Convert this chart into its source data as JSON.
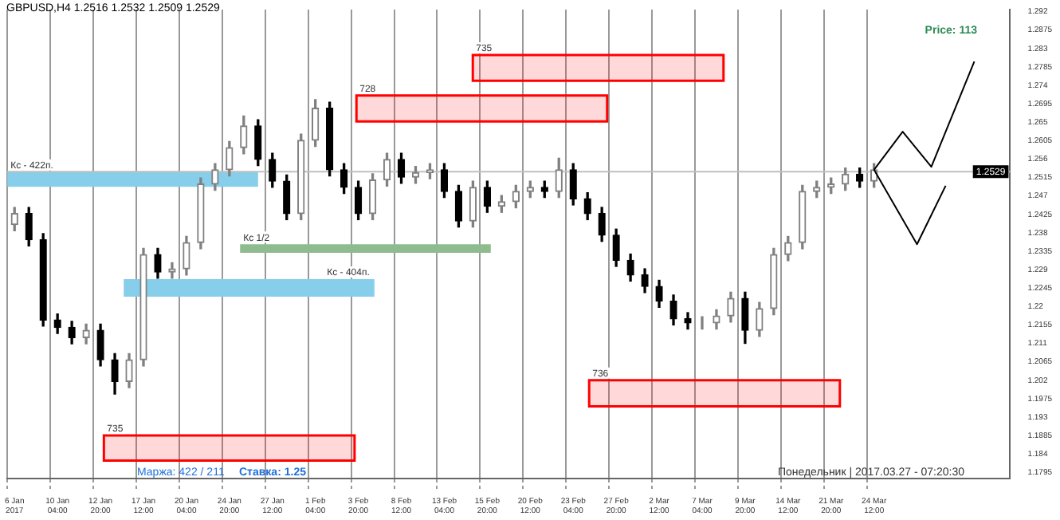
{
  "chart_data": {
    "type": "candlestick",
    "title": "GBPUSD,H4 1.2516 1.2532 1.2509 1.2529",
    "categories": [
      "6 Jan 2017",
      null,
      null,
      "10 Jan 04:00",
      null,
      null,
      "12 Jan 20:00",
      null,
      null,
      "17 Jan 12:00",
      null,
      null,
      "20 Jan 04:00",
      null,
      null,
      "24 Jan 20:00",
      null,
      null,
      "27 Jan 12:00",
      null,
      null,
      "1 Feb 04:00",
      null,
      null,
      "3 Feb 20:00",
      null,
      null,
      "8 Feb 12:00",
      null,
      null,
      "13 Feb 04:00",
      null,
      null,
      "15 Feb 20:00",
      null,
      null,
      "20 Feb 12:00",
      null,
      null,
      "23 Feb 04:00",
      null,
      null,
      "27 Feb 20:00",
      null,
      null,
      "2 Mar 12:00",
      null,
      null,
      "7 Mar 04:00",
      null,
      null,
      "9 Mar 20:00",
      null,
      null,
      "14 Mar 12:00",
      null,
      null,
      "21 Mar 20:00",
      null,
      null,
      "24 Mar 12:00",
      null,
      null,
      null,
      null,
      null,
      null,
      null,
      null,
      null
    ],
    "ohlc": [
      [
        1.24,
        1.2442,
        1.2385,
        1.2427
      ],
      [
        1.2427,
        1.2442,
        1.2348,
        1.2363
      ],
      [
        1.2363,
        1.2378,
        1.2152,
        1.2167
      ],
      [
        1.2167,
        1.2182,
        1.2134,
        1.2149
      ],
      [
        1.2149,
        1.2164,
        1.2109,
        1.2124
      ],
      [
        1.2124,
        1.2157,
        1.2109,
        1.2142
      ],
      [
        1.2142,
        1.2157,
        1.2055,
        1.207
      ],
      [
        1.207,
        1.2085,
        1.1986,
        1.2017
      ],
      [
        1.2017,
        1.2085,
        1.2002,
        1.207
      ],
      [
        1.207,
        1.2342,
        1.2055,
        1.2327
      ],
      [
        1.2327,
        1.2342,
        1.2269,
        1.2284
      ],
      [
        1.2284,
        1.2307,
        1.2269,
        1.2292
      ],
      [
        1.2292,
        1.2371,
        1.2277,
        1.2356
      ],
      [
        1.2356,
        1.2514,
        1.2341,
        1.2499
      ],
      [
        1.2499,
        1.2549,
        1.2484,
        1.2534
      ],
      [
        1.2534,
        1.2603,
        1.2519,
        1.2588
      ],
      [
        1.2588,
        1.2665,
        1.2573,
        1.2641
      ],
      [
        1.2641,
        1.2656,
        1.2544,
        1.2559
      ],
      [
        1.2559,
        1.2574,
        1.2491,
        1.2506
      ],
      [
        1.2506,
        1.2521,
        1.2412,
        1.2427
      ],
      [
        1.2427,
        1.2621,
        1.2412,
        1.2606
      ],
      [
        1.2606,
        1.2705,
        1.2591,
        1.2684
      ],
      [
        1.2684,
        1.2699,
        1.2519,
        1.2534
      ],
      [
        1.2534,
        1.2549,
        1.2476,
        1.2491
      ],
      [
        1.2491,
        1.2506,
        1.2412,
        1.2427
      ],
      [
        1.2427,
        1.2524,
        1.2412,
        1.2509
      ],
      [
        1.2509,
        1.2574,
        1.2494,
        1.2559
      ],
      [
        1.2559,
        1.2574,
        1.2501,
        1.2516
      ],
      [
        1.2516,
        1.2542,
        1.2501,
        1.2527
      ],
      [
        1.2527,
        1.2549,
        1.2512,
        1.2534
      ],
      [
        1.2534,
        1.2549,
        1.2466,
        1.2481
      ],
      [
        1.2481,
        1.2496,
        1.2394,
        1.2409
      ],
      [
        1.2409,
        1.2506,
        1.2394,
        1.2491
      ],
      [
        1.2491,
        1.2506,
        1.243,
        1.2445
      ],
      [
        1.2445,
        1.2471,
        1.243,
        1.2456
      ],
      [
        1.2456,
        1.2496,
        1.2441,
        1.2481
      ],
      [
        1.2481,
        1.2506,
        1.2466,
        1.2491
      ],
      [
        1.2491,
        1.2506,
        1.2466,
        1.2481
      ],
      [
        1.2481,
        1.2562,
        1.2466,
        1.2534
      ],
      [
        1.2534,
        1.2549,
        1.2448,
        1.2463
      ],
      [
        1.2463,
        1.2478,
        1.2412,
        1.2427
      ],
      [
        1.2427,
        1.2442,
        1.2359,
        1.2374
      ],
      [
        1.2374,
        1.2389,
        1.2298,
        1.2313
      ],
      [
        1.2313,
        1.2328,
        1.2262,
        1.2277
      ],
      [
        1.2277,
        1.2292,
        1.2234,
        1.2249
      ],
      [
        1.2249,
        1.2264,
        1.2198,
        1.2213
      ],
      [
        1.2213,
        1.2228,
        1.2155,
        1.217
      ],
      [
        1.217,
        1.2185,
        1.2145,
        1.216
      ],
      [
        1.216,
        1.2175,
        1.2145,
        1.216
      ],
      [
        1.216,
        1.2192,
        1.2145,
        1.2177
      ],
      [
        1.2177,
        1.2235,
        1.2162,
        1.222
      ],
      [
        1.222,
        1.2235,
        1.211,
        1.2142
      ],
      [
        1.2142,
        1.221,
        1.2127,
        1.2195
      ],
      [
        1.2195,
        1.2342,
        1.218,
        1.2327
      ],
      [
        1.2327,
        1.2371,
        1.2312,
        1.2356
      ],
      [
        1.2356,
        1.2496,
        1.2341,
        1.2481
      ],
      [
        1.2481,
        1.2506,
        1.2466,
        1.2491
      ],
      [
        1.2491,
        1.2514,
        1.2476,
        1.2499
      ],
      [
        1.2499,
        1.2538,
        1.2484,
        1.2523
      ],
      [
        1.2523,
        1.2538,
        1.2491,
        1.2506
      ],
      [
        1.2506,
        1.2549,
        1.2491,
        1.2534
      ],
      null,
      null,
      null,
      null,
      null,
      null,
      null,
      null,
      null
    ],
    "series": [
      {
        "type": "line",
        "color": "#000000",
        "values": [
          null,
          null,
          null,
          null,
          null,
          null,
          null,
          null,
          null,
          null,
          null,
          null,
          null,
          null,
          null,
          null,
          null,
          null,
          null,
          null,
          null,
          null,
          null,
          null,
          null,
          null,
          null,
          null,
          null,
          null,
          null,
          null,
          null,
          null,
          null,
          null,
          null,
          null,
          null,
          null,
          null,
          null,
          null,
          null,
          null,
          null,
          null,
          null,
          null,
          null,
          null,
          null,
          null,
          null,
          null,
          null,
          null,
          null,
          null,
          null,
          1.2534,
          null,
          1.2627,
          null,
          1.2541,
          null,
          null,
          1.2798,
          null,
          null
        ]
      },
      {
        "type": "line",
        "color": "#000000",
        "values": [
          null,
          null,
          null,
          null,
          null,
          null,
          null,
          null,
          null,
          null,
          null,
          null,
          null,
          null,
          null,
          null,
          null,
          null,
          null,
          null,
          null,
          null,
          null,
          null,
          null,
          null,
          null,
          null,
          null,
          null,
          null,
          null,
          null,
          null,
          null,
          null,
          null,
          null,
          null,
          null,
          null,
          null,
          null,
          null,
          null,
          null,
          null,
          null,
          null,
          null,
          null,
          null,
          null,
          null,
          null,
          null,
          null,
          null,
          null,
          null,
          1.2534,
          null,
          null,
          1.2352,
          null,
          1.2495,
          null,
          null,
          null,
          null
        ]
      }
    ],
    "ylim": [
      1.178,
      1.2925
    ],
    "yticks": [
      1.1795,
      1.184,
      1.1885,
      1.193,
      1.1975,
      1.202,
      1.2065,
      1.211,
      1.2155,
      1.22,
      1.2245,
      1.229,
      1.2335,
      1.238,
      1.2425,
      1.247,
      1.2515,
      1.256,
      1.2605,
      1.265,
      1.2695,
      1.274,
      1.2785,
      1.283,
      1.2875,
      1.292
    ],
    "grid": "x",
    "marker": "none",
    "line_style": "solid",
    "bands": [
      {
        "axis": "y",
        "from": 1.2492,
        "to": 1.2528,
        "label": "Кс - 422п.",
        "color": "#87ceeb"
      },
      {
        "axis": "y",
        "from": 1.2224,
        "to": 1.2267,
        "label": "Кс - 404п.",
        "color": "#87ceeb"
      },
      {
        "axis": "y",
        "from": 1.2331,
        "to": 1.2352,
        "label": "Кс 1/2",
        "color": "#8fbc8f"
      },
      {
        "axis": "y",
        "from": 1.2652,
        "to": 1.2715,
        "label": "728",
        "color": "#ff0000"
      },
      {
        "axis": "y",
        "from": 1.2751,
        "to": 1.2814,
        "label": "735",
        "color": "#ff0000"
      },
      {
        "axis": "y",
        "from": 1.1956,
        "to": 1.202,
        "label": "736",
        "color": "#ff0000"
      },
      {
        "axis": "y",
        "from": 1.1824,
        "to": 1.1885,
        "label": "735",
        "color": "#ff0000"
      }
    ],
    "ref_lines": [
      {
        "axis": "y",
        "value": 1.2529,
        "label": "1.2529",
        "color": "#c0c0c0"
      }
    ],
    "annotations": [
      "Price: 113",
      "Ставка: 1.25",
      "Маржа: 422 / 211",
      "Понедельник | 2017.03.27 - 07:20:30"
    ]
  }
}
